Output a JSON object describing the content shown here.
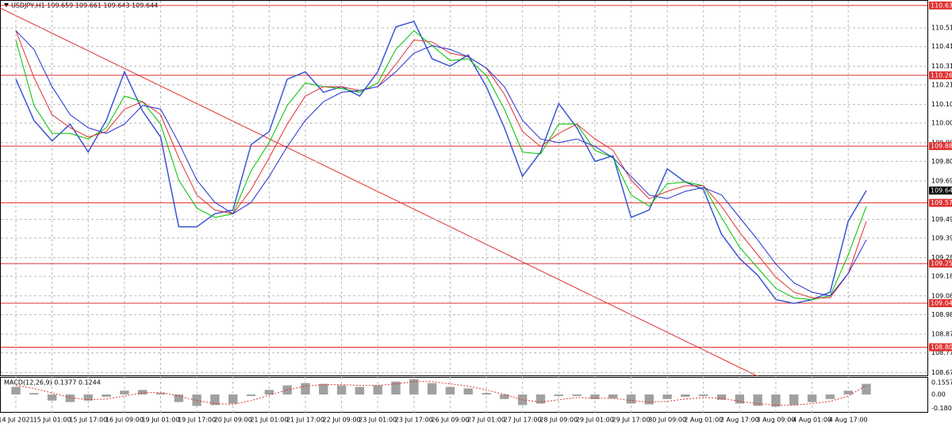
{
  "chart_data": {
    "type": "line",
    "title": "USDJPY,H1  109.659 109.661 109.643 109.644",
    "categories": [
      "14 Jul 2021",
      null,
      "15 Jul 01:00",
      null,
      "15 Jul 17:00",
      null,
      "16 Jul 09:00",
      null,
      "19 Jul 01:00",
      null,
      "19 Jul 17:00",
      null,
      "20 Jul 09:00",
      null,
      "21 Jul 01:00",
      null,
      "21 Jul 17:00",
      null,
      "22 Jul 09:00",
      null,
      "23 Jul 01:00",
      null,
      "23 Jul 17:00",
      null,
      "26 Jul 09:00",
      null,
      "27 Jul 01:00",
      null,
      "27 Jul 17:00",
      null,
      "28 Jul 09:00",
      null,
      "29 Jul 01:00",
      null,
      "29 Jul 17:00",
      null,
      "30 Jul 09:00",
      null,
      "2 Aug 01:00",
      null,
      "2 Aug 17:00",
      null,
      "3 Aug 09:00",
      null,
      "4 Aug 01:00",
      null,
      "4 Aug 17:00",
      null
    ],
    "series": [
      {
        "color": "#3a56d4",
        "values": [
          110.24,
          110.02,
          109.91,
          110.0,
          109.85,
          110.02,
          110.28,
          110.07,
          109.93,
          109.45,
          109.45,
          109.52,
          109.54,
          109.89,
          109.96,
          110.24,
          110.28,
          110.17,
          110.2,
          110.15,
          110.28,
          110.52,
          110.55,
          110.35,
          110.31,
          110.37,
          110.2,
          109.98,
          109.72,
          109.85,
          110.11,
          109.98,
          109.8,
          109.83,
          109.5,
          109.54,
          109.76,
          109.69,
          109.65,
          109.41,
          109.28,
          109.19,
          109.06,
          109.04,
          109.06,
          109.1,
          109.48,
          109.644
        ]
      },
      {
        "color": "#00c000",
        "values": [
          110.45,
          110.1,
          109.95,
          109.95,
          109.92,
          109.98,
          110.15,
          110.12,
          110.0,
          109.7,
          109.55,
          109.5,
          109.52,
          109.75,
          109.9,
          110.1,
          110.22,
          110.2,
          110.19,
          110.17,
          110.22,
          110.4,
          110.5,
          110.42,
          110.34,
          110.35,
          110.26,
          110.08,
          109.85,
          109.84,
          110.0,
          110.0,
          109.86,
          109.82,
          109.62,
          109.56,
          109.68,
          109.69,
          109.67,
          109.5,
          109.34,
          109.23,
          109.12,
          109.07,
          109.06,
          109.08,
          109.3,
          109.56
        ]
      },
      {
        "color": "#e03030",
        "values": [
          110.5,
          110.25,
          110.05,
          109.98,
          109.93,
          109.96,
          110.08,
          110.12,
          110.05,
          109.82,
          109.62,
          109.54,
          109.52,
          109.65,
          109.82,
          110.0,
          110.15,
          110.2,
          110.2,
          110.18,
          110.2,
          110.32,
          110.45,
          110.44,
          110.38,
          110.36,
          110.3,
          110.16,
          109.96,
          109.88,
          109.95,
          110.0,
          109.92,
          109.86,
          109.7,
          109.6,
          109.64,
          109.67,
          109.67,
          109.56,
          109.42,
          109.3,
          109.18,
          109.1,
          109.07,
          109.07,
          109.2,
          109.48
        ]
      },
      {
        "color": "#2030d0",
        "values": [
          110.5,
          110.4,
          110.2,
          110.05,
          109.98,
          109.95,
          110.0,
          110.1,
          110.08,
          109.9,
          109.7,
          109.58,
          109.52,
          109.58,
          109.72,
          109.88,
          110.02,
          110.12,
          110.17,
          110.18,
          110.2,
          110.28,
          110.38,
          110.42,
          110.4,
          110.36,
          110.3,
          110.2,
          110.02,
          109.92,
          109.9,
          109.92,
          109.88,
          109.82,
          109.72,
          109.62,
          109.6,
          109.64,
          109.66,
          109.62,
          109.5,
          109.38,
          109.25,
          109.15,
          109.1,
          109.08,
          109.2,
          109.38
        ]
      }
    ],
    "ylim": [
      108.65,
      110.66
    ],
    "yticks": [
      110.515,
      {
        "value": 110.415,
        "label": "110.415"
      },
      {
        "value": 110.31,
        "label": "110.310"
      },
      {
        "value": 110.21,
        "label": "110.210"
      },
      110.105,
      {
        "value": 110.005,
        "label": "110.005"
      },
      {
        "value": 109.9,
        "label": "109.900"
      },
      {
        "value": 109.8,
        "label": "109.800"
      },
      109.695,
      {
        "value": 109.49,
        "label": "109.490"
      },
      {
        "value": 109.39,
        "label": "109.390"
      },
      109.285,
      109.185,
      {
        "value": 109.08,
        "label": "109.080"
      },
      {
        "value": 108.98,
        "label": "108.980"
      },
      108.875,
      108.775,
      {
        "value": 108.67,
        "label": "108.670"
      }
    ],
    "levels": [
      110.635,
      110.261,
      109.882,
      109.578,
      109.253,
      109.041,
      108.805
    ],
    "level_color": "#e03030",
    "current": 109.644,
    "grid": true,
    "macd": {
      "title": "MACD(12,26,9) 0.1377 0.1244",
      "ylim": [
        -0.24,
        0.22
      ],
      "yticks": [
        0.1557,
        {
          "value": 0,
          "label": "0.00"
        },
        -0.1805
      ],
      "histogram": [
        0.1,
        0.02,
        -0.08,
        -0.1,
        -0.08,
        -0.03,
        0.05,
        0.06,
        0.02,
        -0.1,
        -0.15,
        -0.14,
        -0.12,
        -0.02,
        0.06,
        0.12,
        0.15,
        0.14,
        0.12,
        0.1,
        0.12,
        0.17,
        0.2,
        0.15,
        0.1,
        0.08,
        0.02,
        -0.06,
        -0.14,
        -0.12,
        -0.02,
        -0.02,
        -0.06,
        -0.05,
        -0.12,
        -0.13,
        -0.06,
        -0.03,
        -0.02,
        -0.07,
        -0.12,
        -0.15,
        -0.16,
        -0.14,
        -0.1,
        -0.06,
        0.05,
        0.14
      ],
      "signal": [
        0.12,
        0.08,
        0.02,
        -0.04,
        -0.07,
        -0.06,
        -0.02,
        0.02,
        0.03,
        -0.02,
        -0.08,
        -0.12,
        -0.13,
        -0.08,
        -0.01,
        0.06,
        0.11,
        0.13,
        0.13,
        0.12,
        0.12,
        0.14,
        0.17,
        0.17,
        0.14,
        0.11,
        0.06,
        0.0,
        -0.07,
        -0.1,
        -0.07,
        -0.04,
        -0.05,
        -0.05,
        -0.08,
        -0.1,
        -0.09,
        -0.06,
        -0.04,
        -0.05,
        -0.09,
        -0.12,
        -0.14,
        -0.14,
        -0.12,
        -0.09,
        -0.02,
        0.12
      ],
      "histogram_color": "#a0a0a0",
      "signal_color": "#e03030"
    }
  }
}
